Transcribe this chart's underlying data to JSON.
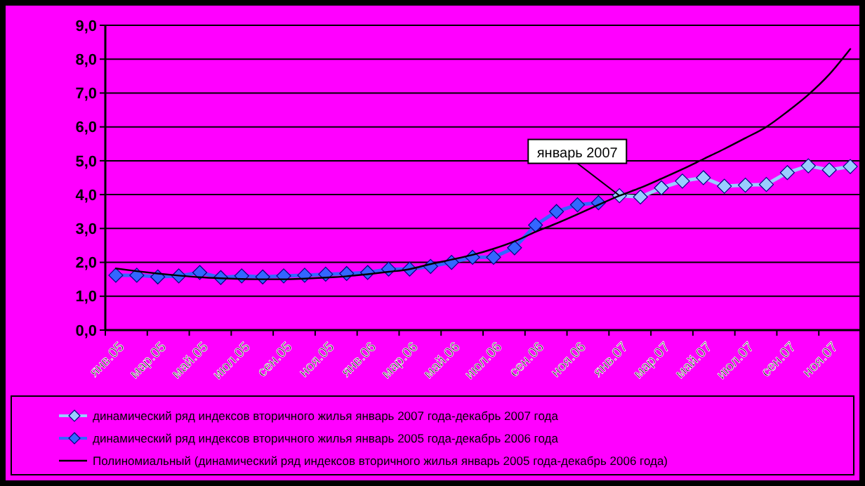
{
  "chart_data": {
    "type": "line",
    "categories": [
      "янв.05",
      null,
      "мар.05",
      null,
      "май.05",
      null,
      "июл.05",
      null,
      "сен.05",
      null,
      "ноя.05",
      null,
      "янв.06",
      null,
      "мар.06",
      null,
      "май.06",
      null,
      "июл.06",
      null,
      "сен.06",
      null,
      "ноя.06",
      null,
      "янв.07",
      null,
      "мар.07",
      null,
      "май.07",
      null,
      "июл.07",
      null,
      "сен.07",
      null,
      "ноя.07",
      null
    ],
    "series": [
      {
        "name": "динамический ряд индексов вторичного жилья январь 2007 года-декабрь 2007 года",
        "color": "#99ccff",
        "marker": "diamond",
        "values": [
          null,
          null,
          null,
          null,
          null,
          null,
          null,
          null,
          null,
          null,
          null,
          null,
          null,
          null,
          null,
          null,
          null,
          null,
          null,
          null,
          null,
          null,
          null,
          null,
          3.97,
          3.93,
          4.2,
          4.4,
          4.5,
          4.25,
          4.28,
          4.3,
          4.65,
          4.85,
          4.73,
          4.83
        ]
      },
      {
        "name": "динамический ряд индексов вторичного жилья январь 2005 года-декабрь 2006 года",
        "color": "#3366ff",
        "marker": "diamond",
        "values": [
          1.62,
          1.62,
          1.57,
          1.6,
          1.7,
          1.55,
          1.6,
          1.57,
          1.6,
          1.62,
          1.65,
          1.67,
          1.7,
          1.8,
          1.8,
          1.88,
          2.0,
          2.15,
          2.15,
          2.43,
          3.1,
          3.5,
          3.7,
          3.76,
          null,
          null,
          null,
          null,
          null,
          null,
          null,
          null,
          null,
          null,
          null,
          null
        ]
      },
      {
        "name": "Полиномиальный (динамический ряд индексов вторичного жилья январь 2005 года-декабрь 2006 года)",
        "color": "#000000",
        "marker": "none",
        "values": [
          1.82,
          1.74,
          1.67,
          1.61,
          1.56,
          1.53,
          1.51,
          1.5,
          1.5,
          1.52,
          1.55,
          1.59,
          1.65,
          1.72,
          1.8,
          1.95,
          2.08,
          2.22,
          2.4,
          2.62,
          2.9,
          3.15,
          3.42,
          3.7,
          3.97,
          4.2,
          4.47,
          4.75,
          5.05,
          5.35,
          5.67,
          6.0,
          6.45,
          6.95,
          7.55,
          8.3
        ]
      }
    ],
    "ylim": [
      0,
      9
    ],
    "yticks": [
      {
        "value": 0,
        "label": "0,0"
      },
      {
        "value": 1,
        "label": "1,0"
      },
      {
        "value": 2,
        "label": "2,0"
      },
      {
        "value": 3,
        "label": "3,0"
      },
      {
        "value": 4,
        "label": "4,0"
      },
      {
        "value": 5,
        "label": "5,0"
      },
      {
        "value": 6,
        "label": "6,0"
      },
      {
        "value": 7,
        "label": "7,0"
      },
      {
        "value": 8,
        "label": "8,0"
      },
      {
        "value": 9,
        "label": "9,0"
      }
    ],
    "grid": "y",
    "legend": "bottom",
    "annotations": [
      {
        "text": "январь 2007",
        "x": "янв.07",
        "y": 3.97
      }
    ]
  }
}
